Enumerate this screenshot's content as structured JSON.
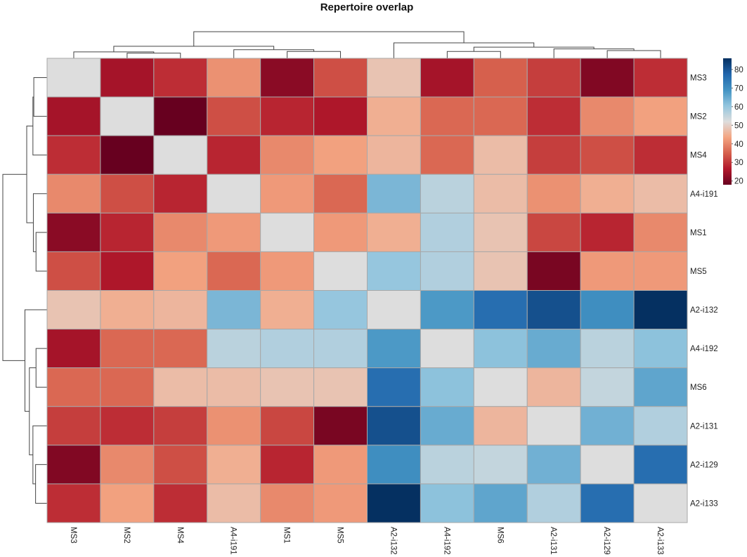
{
  "chart_data": {
    "type": "heatmap",
    "title": "Repertoire overlap",
    "xlabel": "",
    "ylabel": "",
    "row_labels": [
      "MS3",
      "MS2",
      "MS4",
      "A4-i191",
      "MS1",
      "MS5",
      "A2-i132",
      "A4-i192",
      "MS6",
      "A2-i131",
      "A2-i129",
      "A2-i133"
    ],
    "col_labels": [
      "MS3",
      "MS2",
      "MS4",
      "A4-i191",
      "MS1",
      "MS5",
      "A2-i132",
      "A4-i192",
      "MS6",
      "A2-i131",
      "A2-i129",
      "A2-i133"
    ],
    "values": [
      [
        52,
        25,
        29,
        41,
        22,
        33,
        48,
        25,
        35,
        31,
        21,
        29
      ],
      [
        25,
        52,
        18,
        33,
        28,
        26,
        45,
        36,
        36,
        29,
        40,
        43
      ],
      [
        29,
        18,
        52,
        28,
        40,
        43,
        46,
        36,
        47,
        31,
        33,
        29
      ],
      [
        40,
        33,
        28,
        52,
        42,
        36,
        63,
        56,
        47,
        41,
        45,
        47
      ],
      [
        22,
        28,
        40,
        42,
        52,
        42,
        45,
        57,
        48,
        32,
        28,
        40
      ],
      [
        33,
        26,
        43,
        36,
        42,
        52,
        60,
        57,
        48,
        20,
        42,
        42
      ],
      [
        48,
        45,
        46,
        63,
        45,
        60,
        52,
        68,
        76,
        81,
        70,
        86
      ],
      [
        25,
        36,
        36,
        56,
        57,
        57,
        68,
        52,
        61,
        65,
        56,
        61
      ],
      [
        36,
        36,
        47,
        47,
        48,
        48,
        76,
        61,
        52,
        46,
        55,
        66
      ],
      [
        31,
        29,
        31,
        41,
        32,
        20,
        81,
        65,
        46,
        52,
        64,
        57
      ],
      [
        21,
        40,
        33,
        45,
        28,
        42,
        70,
        56,
        55,
        64,
        52,
        76
      ],
      [
        29,
        43,
        29,
        47,
        40,
        42,
        86,
        61,
        66,
        57,
        76,
        52
      ]
    ],
    "color_scale": {
      "name": "RdBu",
      "range": [
        18,
        86
      ],
      "midpoint": 52,
      "stops": [
        "#67001f",
        "#b2182b",
        "#d6604d",
        "#f4a582",
        "#dddddd",
        "#92c5de",
        "#4393c3",
        "#2166ac",
        "#053061"
      ]
    },
    "legend": {
      "position": "right",
      "ticks": [
        20,
        30,
        40,
        50,
        60,
        70,
        80
      ]
    },
    "col_dendrogram": {
      "merges": [
        {
          "left": [
            "MS2"
          ],
          "right": [
            "MS4"
          ],
          "height": 0.12
        },
        {
          "left": [
            "MS3"
          ],
          "right": [
            "MS2",
            "MS4"
          ],
          "height": 0.15
        },
        {
          "left": [
            "MS1"
          ],
          "right": [
            "MS5"
          ],
          "height": 0.16
        },
        {
          "left": [
            "A4-i191"
          ],
          "right": [
            "MS1",
            "MS5"
          ],
          "height": 0.2
        },
        {
          "left": [
            "MS3",
            "MS2",
            "MS4"
          ],
          "right": [
            "A4-i191",
            "MS1",
            "MS5"
          ],
          "height": 0.28
        },
        {
          "left": [
            "A4-i192"
          ],
          "right": [
            "MS6"
          ],
          "height": 0.16
        },
        {
          "left": [
            "A2-i129"
          ],
          "right": [
            "A2-i133"
          ],
          "height": 0.18
        },
        {
          "left": [
            "A2-i131"
          ],
          "right": [
            "A2-i129",
            "A2-i133"
          ],
          "height": 0.22
        },
        {
          "left": [
            "A4-i192",
            "MS6"
          ],
          "right": [
            "A2-i131",
            "A2-i129",
            "A2-i133"
          ],
          "height": 0.26
        },
        {
          "left": [
            "A4-i192",
            "MS6",
            "A2-i131",
            "A2-i129",
            "A2-i133"
          ],
          "right": [],
          "height": 0.36
        },
        {
          "left": [
            "A2-i132"
          ],
          "right": [
            "A4-i192",
            "MS6",
            "A2-i131",
            "A2-i129",
            "A2-i133"
          ],
          "height": 0.36
        },
        {
          "left": [
            "MS3",
            "MS2",
            "MS4",
            "A4-i191",
            "MS1",
            "MS5"
          ],
          "right": [
            "A2-i132",
            "A4-i192",
            "MS6",
            "A2-i131",
            "A2-i129",
            "A2-i133"
          ],
          "height": 0.62
        }
      ]
    },
    "row_dendrogram": {
      "merges": [
        {
          "left": [
            "MS3"
          ],
          "right": [
            "MS2"
          ],
          "height": 0.3
        },
        {
          "left": [
            "MS3",
            "MS2"
          ],
          "right": [
            "MS4"
          ],
          "height": 0.32
        },
        {
          "left": [
            "MS1"
          ],
          "right": [
            "MS5"
          ],
          "height": 0.25
        },
        {
          "left": [
            "A4-i191"
          ],
          "right": [
            "MS1",
            "MS5"
          ],
          "height": 0.31
        },
        {
          "left": [
            "MS3",
            "MS2",
            "MS4"
          ],
          "right": [
            "A4-i191",
            "MS1",
            "MS5"
          ],
          "height": 0.46
        },
        {
          "left": [
            "A4-i192"
          ],
          "right": [
            "MS6"
          ],
          "height": 0.25
        },
        {
          "left": [
            "A2-i129"
          ],
          "right": [
            "A2-i133"
          ],
          "height": 0.26
        },
        {
          "left": [
            "A2-i131"
          ],
          "right": [
            "A2-i129",
            "A2-i133"
          ],
          "height": 0.32
        },
        {
          "left": [
            "A4-i192",
            "MS6"
          ],
          "right": [
            "A2-i131",
            "A2-i129",
            "A2-i133"
          ],
          "height": 0.4
        },
        {
          "left": [
            "A2-i132"
          ],
          "right": [
            "A4-i192",
            "MS6",
            "A2-i131",
            "A2-i129",
            "A2-i133"
          ],
          "height": 0.5
        },
        {
          "left": [
            "MS3",
            "MS2",
            "MS4",
            "A4-i191",
            "MS1",
            "MS5"
          ],
          "right": [
            "A2-i132",
            "A4-i192",
            "MS6",
            "A2-i131",
            "A2-i129",
            "A2-i133"
          ],
          "height": 1.0
        }
      ]
    }
  }
}
